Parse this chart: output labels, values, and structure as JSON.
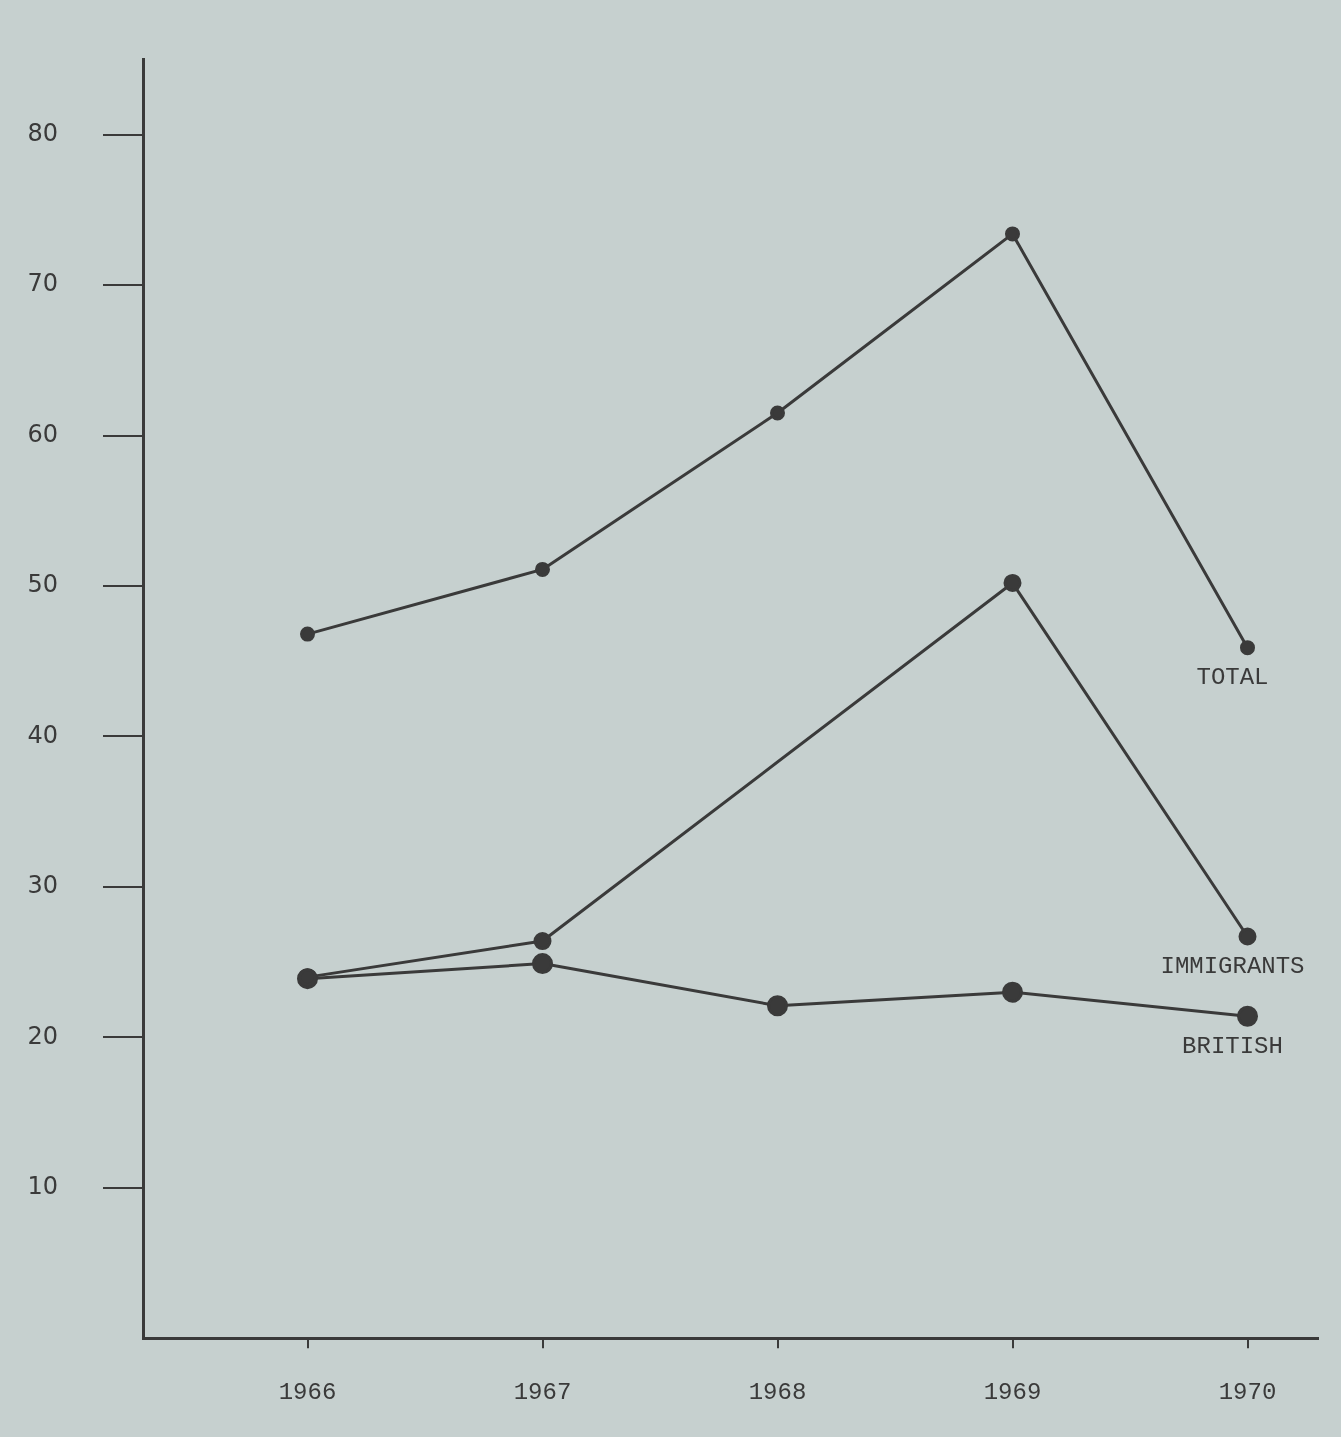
{
  "chart_data": {
    "type": "line",
    "x": [
      1966,
      1967,
      1968,
      1969,
      1970
    ],
    "xlim": [
      1965.3,
      1970.3
    ],
    "xticks": [
      1966,
      1967,
      1968,
      1969,
      1970
    ],
    "ylim": [
      0,
      85
    ],
    "yticks": [
      10,
      20,
      30,
      40,
      50,
      60,
      70,
      80
    ],
    "grid": false,
    "legend": false,
    "marker": "circle",
    "line_style": "solid",
    "series": [
      {
        "name": "TOTAL",
        "color": "#3a3a3a",
        "values": [
          46.8,
          51.1,
          61.5,
          73.4,
          45.9
        ]
      },
      {
        "name": "IMMIGRANTS",
        "color": "#3a3a3a",
        "values": [
          24.0,
          26.4,
          null,
          50.2,
          26.7
        ]
      },
      {
        "name": "BRITISH",
        "color": "#3a3a3a",
        "values": [
          23.9,
          24.9,
          22.1,
          23.0,
          21.4
        ]
      }
    ]
  }
}
